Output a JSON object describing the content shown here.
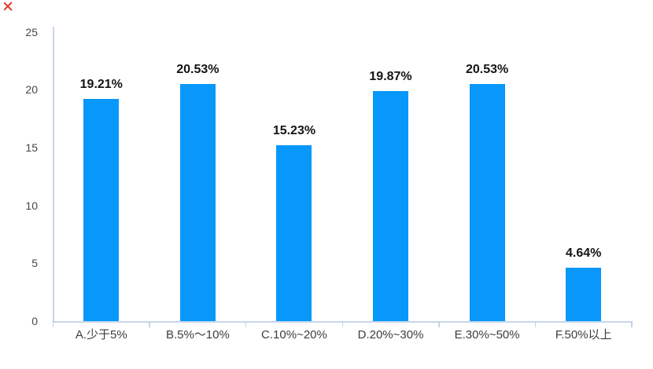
{
  "icons": {
    "corner_mark": "red-x"
  },
  "colors": {
    "background": "#ffffff",
    "bar": "#0897fa",
    "axis_line": "#c6d6ea",
    "tick_mark": "#c2d3e8",
    "value_label_text": "#141414",
    "axis_label_text": "#474747",
    "category_label_text": "#3d3d3d",
    "corner_mark": "#dc3a2a"
  },
  "chart_data": {
    "type": "bar",
    "title": "",
    "xlabel": "",
    "ylabel": "",
    "categories": [
      "A.少于5%",
      "B.5%～10%",
      "C.10%~20%",
      "D.20%~30%",
      "E.30%~50%",
      "F.50%以上"
    ],
    "values": [
      19.21,
      20.53,
      15.23,
      19.87,
      20.53,
      4.64
    ],
    "value_labels": [
      "19.21%",
      "20.53%",
      "15.23%",
      "19.87%",
      "20.53%",
      "4.64%"
    ],
    "y_ticks": [
      0,
      5,
      10,
      15,
      20,
      25
    ],
    "ylim": [
      0,
      25
    ],
    "grid": false,
    "legend": false,
    "bar_color": "#0897fa"
  }
}
